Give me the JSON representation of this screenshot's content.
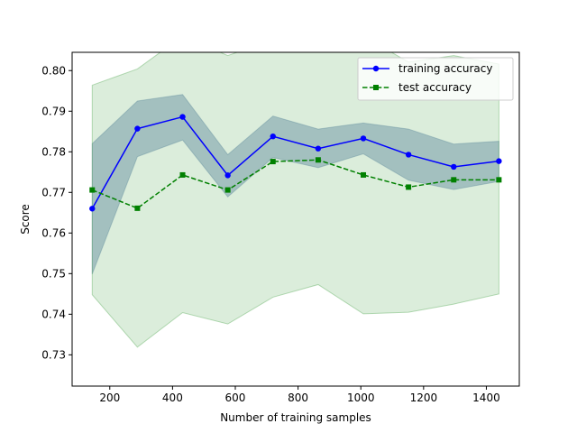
{
  "chart_data": {
    "type": "line",
    "xlabel": "Number of training samples",
    "ylabel": "Score",
    "xlim": [
      80,
      1505
    ],
    "ylim": [
      0.7223,
      0.8045
    ],
    "xticks": [
      200,
      400,
      600,
      800,
      1000,
      1200,
      1400
    ],
    "yticks": [
      0.73,
      0.74,
      0.75,
      0.76,
      0.77,
      0.78,
      0.79,
      0.8
    ],
    "xtick_labels": [
      "200",
      "400",
      "600",
      "800",
      "1000",
      "1200",
      "1400"
    ],
    "ytick_labels": [
      "0.73",
      "0.74",
      "0.75",
      "0.76",
      "0.77",
      "0.78",
      "0.79",
      "0.80"
    ],
    "x": [
      144,
      288,
      432,
      576,
      720,
      864,
      1008,
      1152,
      1296,
      1440
    ],
    "legend_placement": "top-right",
    "grid": false,
    "series": [
      {
        "name": "training accuracy",
        "color": "#0000ff",
        "linestyle": "solid",
        "marker": "circle",
        "values": [
          0.766,
          0.7857,
          0.7886,
          0.7742,
          0.7838,
          0.7808,
          0.7833,
          0.7793,
          0.7763,
          0.7777
        ],
        "band_upper": [
          0.782,
          0.7925,
          0.7941,
          0.7793,
          0.7888,
          0.7856,
          0.7871,
          0.7856,
          0.7819,
          0.7826
        ],
        "band_lower": [
          0.7499,
          0.7788,
          0.7829,
          0.7689,
          0.7786,
          0.7761,
          0.7795,
          0.773,
          0.7707,
          0.7727
        ],
        "band_color": "#5577aa"
      },
      {
        "name": "test accuracy",
        "color": "#008000",
        "linestyle": "dashed",
        "marker": "square",
        "values": [
          0.7706,
          0.7661,
          0.7743,
          0.7706,
          0.7776,
          0.778,
          0.7743,
          0.7713,
          0.7731,
          0.7731
        ],
        "band_upper": [
          0.7964,
          0.8004,
          0.8085,
          0.8037,
          0.8076,
          0.8081,
          0.8085,
          0.8021,
          0.8037,
          0.8016
        ],
        "band_lower": [
          0.7448,
          0.7319,
          0.7404,
          0.7376,
          0.7442,
          0.7473,
          0.7401,
          0.7405,
          0.7425,
          0.745
        ],
        "band_color": "#3a9a3a"
      }
    ]
  }
}
